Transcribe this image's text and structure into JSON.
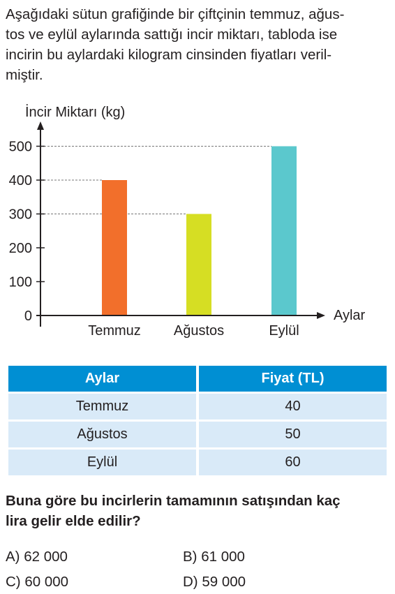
{
  "intro_lines": [
    "Aşağıdaki sütun grafiğinde bir çiftçinin temmuz, ağus-",
    "tos ve eylül aylarında sattığı incir miktarı, tabloda ise",
    "incirin bu aylardaki kilogram cinsinden fiyatları veril-",
    "miştir."
  ],
  "chart_data": {
    "type": "bar",
    "ylabel": "İncir Miktarı (kg)",
    "xlabel": "Aylar",
    "categories": [
      "Temmuz",
      "Ağustos",
      "Eylül"
    ],
    "values": [
      400,
      300,
      500
    ],
    "colors": [
      "#f26f2b",
      "#d6de23",
      "#5bc8cd"
    ],
    "yticks": [
      0,
      100,
      200,
      300,
      400,
      500
    ],
    "ylim": [
      0,
      500
    ],
    "grid": false,
    "dashed_guides_to_bar_tops": true
  },
  "table": {
    "headers": [
      "Aylar",
      "Fiyat (TL)"
    ],
    "rows": [
      [
        "Temmuz",
        "40"
      ],
      [
        "Ağustos",
        "50"
      ],
      [
        "Eylül",
        "60"
      ]
    ],
    "header_color": "#008fd3",
    "row_color": "#d9eaf8"
  },
  "question_lines": [
    "Buna göre bu incirlerin tamamının satışından kaç",
    "lira gelir elde edilir?"
  ],
  "options": {
    "a": "A) 62 000",
    "b": "B) 61 000",
    "c": "C) 60 000",
    "d": "D) 59 000"
  }
}
